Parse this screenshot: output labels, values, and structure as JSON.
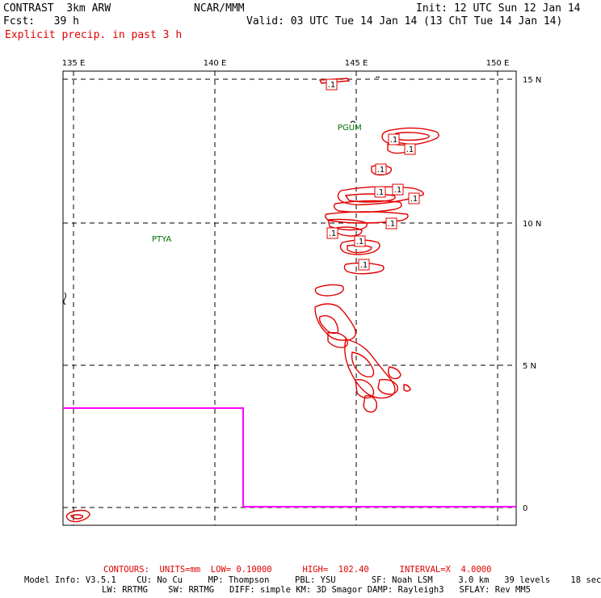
{
  "header": {
    "title": "CONTRAST  3km ARW",
    "center": "NCAR/MMM",
    "init": "Init: 12 UTC Sun 12 Jan 14",
    "fcst": "Fcst:   39 h",
    "valid": "Valid: 03 UTC Tue 14 Jan 14 (13 ChT Tue 14 Jan 14)",
    "field": "Explicit precip. in past 3 h"
  },
  "map": {
    "lon_labels": [
      "135 E",
      "140 E",
      "145 E",
      "150 E"
    ],
    "lat_labels": [
      "15 N",
      "10 N",
      "5 N",
      "0"
    ],
    "stations": [
      "PGUM",
      "PTYA"
    ],
    "contour_label": ".1",
    "colors": {
      "contour": "#e00000",
      "boundary": "#ff00ff",
      "station": "#007000"
    }
  },
  "footer": {
    "contours": "CONTOURS:  UNITS=mm  LOW= 0.10000      HIGH=  102.40      INTERVAL=X  4.0000",
    "model_line1": "Model Info: V3.5.1    CU: No Cu     MP: Thompson     PBL: YSU       SF: Noah LSM     3.0 km   39 levels    18 sec",
    "model_line2": "LW: RRTMG    SW: RRTMG   DIFF: simple KM: 3D Smagor DAMP: Rayleigh3   SFLAY: Rev MM5"
  }
}
